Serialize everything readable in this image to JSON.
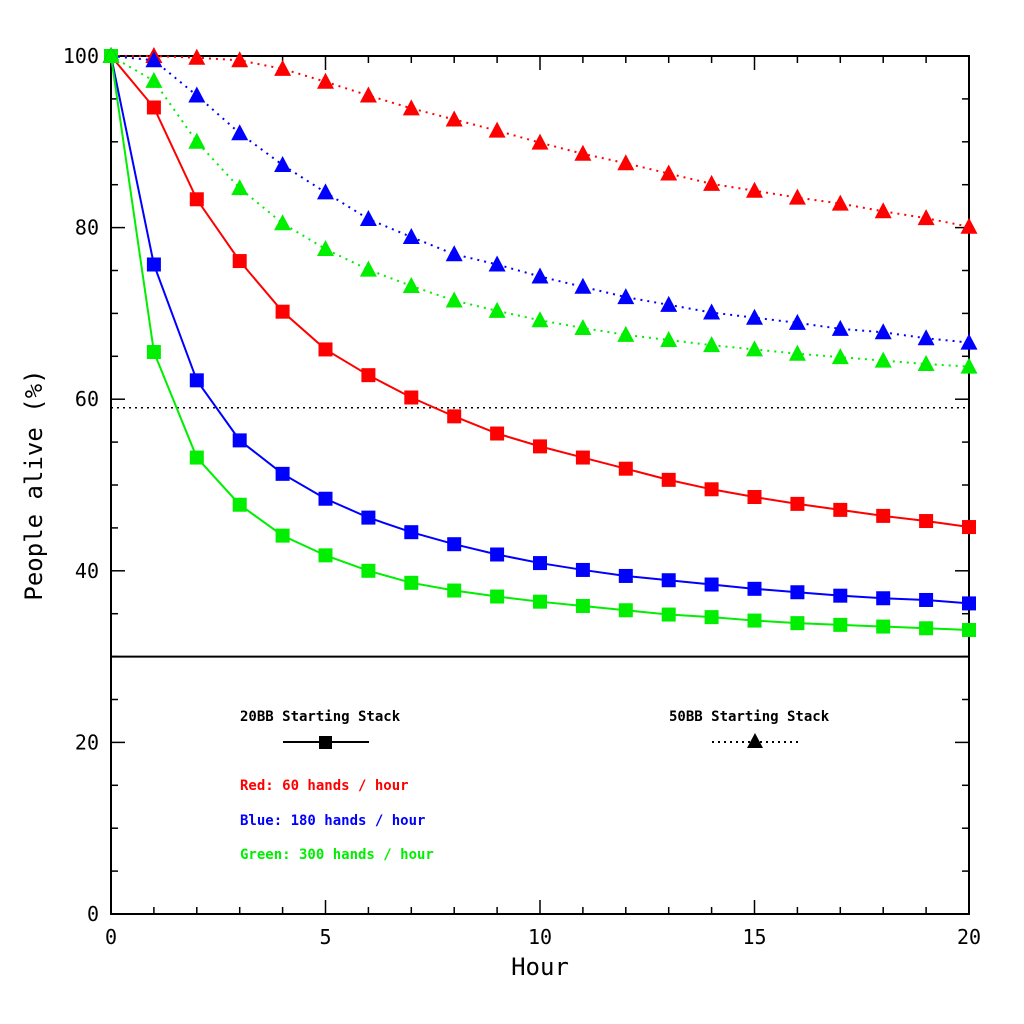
{
  "chart_data": {
    "type": "line",
    "title": "",
    "xlabel": "Hour",
    "ylabel": "People alive (%)",
    "xlim": [
      0,
      20
    ],
    "ylim": [
      0,
      100
    ],
    "x_ticks": [
      "0",
      "5",
      "10",
      "15",
      "20"
    ],
    "y_ticks": [
      "0",
      "20",
      "40",
      "60",
      "80",
      "100"
    ],
    "grid": false,
    "reference_line": {
      "y": 59,
      "style": "dotted"
    },
    "x": [
      0,
      1,
      2,
      3,
      4,
      5,
      6,
      7,
      8,
      9,
      10,
      11,
      12,
      13,
      14,
      15,
      16,
      17,
      18,
      19,
      20
    ],
    "series": [
      {
        "key": "red20",
        "color": "#ff0000",
        "stack": "20BB",
        "line": "solid",
        "marker": "square",
        "values": [
          100,
          94,
          83.3,
          76.1,
          70.2,
          65.8,
          62.8,
          60.2,
          58,
          56,
          54.5,
          53.2,
          51.9,
          50.6,
          49.5,
          48.6,
          47.8,
          47.1,
          46.4,
          45.8,
          45.1
        ]
      },
      {
        "key": "blue20",
        "color": "#0000ff",
        "stack": "20BB",
        "line": "solid",
        "marker": "square",
        "values": [
          100,
          75.7,
          62.2,
          55.2,
          51.3,
          48.4,
          46.2,
          44.5,
          43.1,
          41.9,
          40.9,
          40.1,
          39.4,
          38.9,
          38.4,
          37.9,
          37.5,
          37.1,
          36.8,
          36.6,
          36.2
        ]
      },
      {
        "key": "green20",
        "color": "#00ee00",
        "stack": "20BB",
        "line": "solid",
        "marker": "square",
        "values": [
          100,
          65.5,
          53.2,
          47.7,
          44.1,
          41.8,
          40,
          38.6,
          37.7,
          37,
          36.4,
          35.9,
          35.4,
          34.9,
          34.6,
          34.2,
          33.9,
          33.7,
          33.5,
          33.3,
          33.1
        ]
      },
      {
        "key": "red50",
        "color": "#ff0000",
        "stack": "50BB",
        "line": "dotted",
        "marker": "triangle",
        "values": [
          100,
          100,
          99.8,
          99.5,
          98.5,
          97,
          95.4,
          93.9,
          92.6,
          91.3,
          89.9,
          88.6,
          87.5,
          86.3,
          85.1,
          84.3,
          83.5,
          82.8,
          81.9,
          81.1,
          80.1
        ]
      },
      {
        "key": "blue50",
        "color": "#0000ff",
        "stack": "50BB",
        "line": "dotted",
        "marker": "triangle",
        "values": [
          100,
          99.5,
          95.4,
          91,
          87.3,
          84.1,
          81,
          78.9,
          76.9,
          75.7,
          74.3,
          73.1,
          71.9,
          71,
          70.1,
          69.5,
          68.9,
          68.2,
          67.8,
          67.1,
          66.6
        ]
      },
      {
        "key": "green50",
        "color": "#00ee00",
        "stack": "50BB",
        "line": "dotted",
        "marker": "triangle",
        "values": [
          100,
          97.1,
          90,
          84.6,
          80.5,
          77.5,
          75.1,
          73.2,
          71.5,
          70.3,
          69.2,
          68.3,
          67.5,
          66.9,
          66.3,
          65.8,
          65.3,
          64.9,
          64.5,
          64.1,
          63.8
        ]
      }
    ],
    "legend": {
      "stack_20": "20BB Starting Stack",
      "stack_50": "50BB Starting Stack",
      "red": "Red: 60 hands / hour",
      "blue": "Blue: 180 hands / hour",
      "green": "Green: 300 hands / hour"
    }
  }
}
